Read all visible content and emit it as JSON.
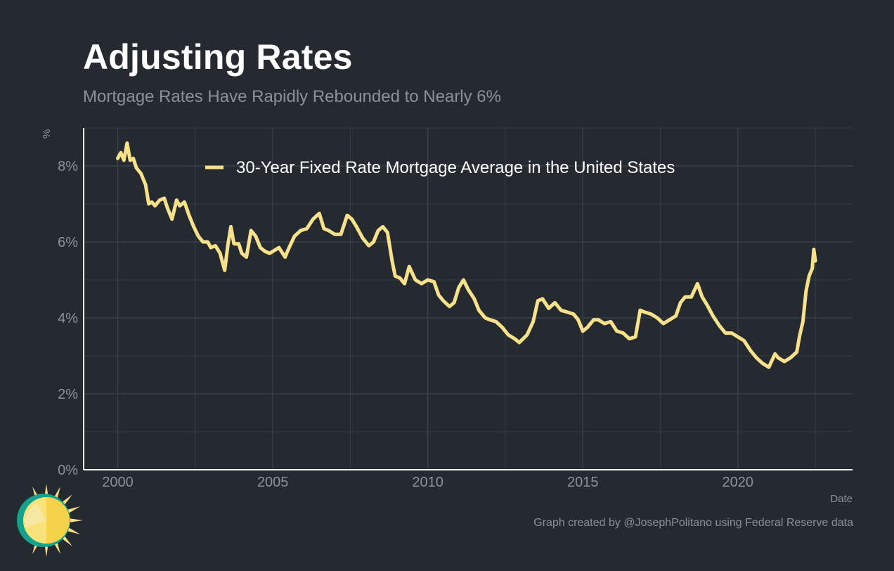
{
  "header": {
    "title": "Adjusting Rates",
    "subtitle": "Mortgage Rates Have Rapidly Rebounded to Nearly 6%"
  },
  "footer": {
    "caption": "Graph created by @JosephPolitano using Federal Reserve data"
  },
  "logo": {
    "icon": "sun-icon"
  },
  "colors": {
    "background": "#252a31",
    "series": "#f7e189",
    "grid": "#3d434b",
    "axis": "#ffffff",
    "text_muted": "#8d9197"
  },
  "chart_data": {
    "type": "line",
    "xlabel": "Date",
    "ylabel": "%",
    "xlim": [
      1998.9,
      2023.7
    ],
    "ylim": [
      0,
      9
    ],
    "x_ticks": [
      2000,
      2005,
      2010,
      2015,
      2020
    ],
    "x_tick_labels": [
      "2000",
      "2005",
      "2010",
      "2015",
      "2020"
    ],
    "y_ticks": [
      0,
      2,
      4,
      6,
      8
    ],
    "y_tick_labels": [
      "0%",
      "2%",
      "4%",
      "6%",
      "8%"
    ],
    "grid": true,
    "legend": {
      "position": "top-center"
    },
    "series": [
      {
        "name": "30-Year Fixed Rate Mortgage Average in the United States",
        "color": "#f7e189",
        "x": [
          2000.0,
          2000.1,
          2000.2,
          2000.3,
          2000.4,
          2000.5,
          2000.6,
          2000.75,
          2000.9,
          2001.0,
          2001.1,
          2001.2,
          2001.35,
          2001.5,
          2001.6,
          2001.75,
          2001.9,
          2002.0,
          2002.15,
          2002.3,
          2002.45,
          2002.6,
          2002.75,
          2002.9,
          2003.0,
          2003.15,
          2003.3,
          2003.45,
          2003.55,
          2003.65,
          2003.75,
          2003.9,
          2004.0,
          2004.15,
          2004.3,
          2004.45,
          2004.6,
          2004.75,
          2004.9,
          2005.0,
          2005.2,
          2005.4,
          2005.5,
          2005.7,
          2005.9,
          2006.1,
          2006.3,
          2006.5,
          2006.65,
          2006.8,
          2007.0,
          2007.2,
          2007.4,
          2007.55,
          2007.7,
          2007.9,
          2008.1,
          2008.25,
          2008.4,
          2008.55,
          2008.7,
          2008.85,
          2008.95,
          2009.1,
          2009.25,
          2009.4,
          2009.6,
          2009.8,
          2010.0,
          2010.2,
          2010.35,
          2010.5,
          2010.7,
          2010.85,
          2011.0,
          2011.15,
          2011.3,
          2011.5,
          2011.65,
          2011.85,
          2012.0,
          2012.2,
          2012.4,
          2012.6,
          2012.8,
          2012.95,
          2013.2,
          2013.4,
          2013.55,
          2013.7,
          2013.9,
          2014.1,
          2014.3,
          2014.5,
          2014.7,
          2014.85,
          2015.0,
          2015.15,
          2015.35,
          2015.5,
          2015.7,
          2015.9,
          2016.1,
          2016.3,
          2016.5,
          2016.7,
          2016.85,
          2017.0,
          2017.2,
          2017.4,
          2017.6,
          2017.8,
          2018.0,
          2018.15,
          2018.3,
          2018.5,
          2018.7,
          2018.85,
          2019.0,
          2019.2,
          2019.4,
          2019.6,
          2019.8,
          2020.0,
          2020.2,
          2020.4,
          2020.6,
          2020.8,
          2021.0,
          2021.2,
          2021.3,
          2021.5,
          2021.7,
          2021.9,
          2022.0,
          2022.1,
          2022.2,
          2022.3,
          2022.4,
          2022.45,
          2022.5
        ],
        "values": [
          8.2,
          8.35,
          8.15,
          8.6,
          8.15,
          8.2,
          7.95,
          7.8,
          7.5,
          7.0,
          7.05,
          6.95,
          7.1,
          7.15,
          6.9,
          6.6,
          7.1,
          6.95,
          7.05,
          6.7,
          6.4,
          6.15,
          6.0,
          6.0,
          5.85,
          5.9,
          5.7,
          5.25,
          5.9,
          6.4,
          5.95,
          5.95,
          5.7,
          5.6,
          6.3,
          6.15,
          5.85,
          5.75,
          5.7,
          5.75,
          5.85,
          5.6,
          5.8,
          6.15,
          6.3,
          6.35,
          6.6,
          6.75,
          6.35,
          6.3,
          6.2,
          6.2,
          6.7,
          6.6,
          6.4,
          6.1,
          5.9,
          6.0,
          6.3,
          6.4,
          6.25,
          5.5,
          5.1,
          5.05,
          4.9,
          5.35,
          5.0,
          4.9,
          5.0,
          4.95,
          4.6,
          4.45,
          4.3,
          4.4,
          4.8,
          5.0,
          4.75,
          4.5,
          4.2,
          4.0,
          3.95,
          3.9,
          3.75,
          3.55,
          3.45,
          3.35,
          3.55,
          3.9,
          4.45,
          4.5,
          4.25,
          4.4,
          4.2,
          4.15,
          4.1,
          3.95,
          3.65,
          3.75,
          3.95,
          3.95,
          3.85,
          3.9,
          3.65,
          3.6,
          3.45,
          3.5,
          4.2,
          4.15,
          4.1,
          4.0,
          3.85,
          3.95,
          4.05,
          4.4,
          4.55,
          4.55,
          4.9,
          4.55,
          4.35,
          4.05,
          3.8,
          3.6,
          3.6,
          3.5,
          3.4,
          3.15,
          2.95,
          2.8,
          2.7,
          3.05,
          2.95,
          2.85,
          2.95,
          3.1,
          3.55,
          3.9,
          4.7,
          5.1,
          5.3,
          5.8,
          5.5
        ]
      }
    ]
  }
}
